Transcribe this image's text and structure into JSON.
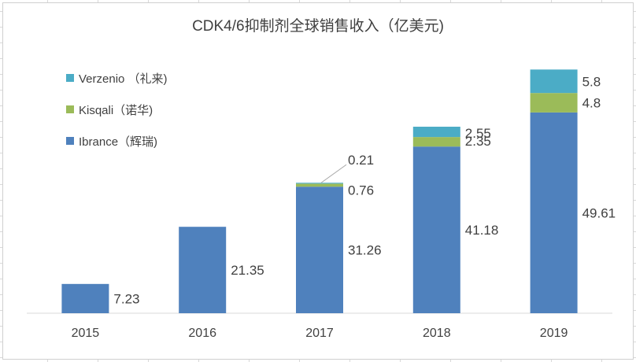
{
  "chart_data": {
    "type": "bar",
    "stacked": true,
    "title": "CDK4/6抑制剂全球销售收入（亿美元)",
    "categories": [
      "2015",
      "2016",
      "2017",
      "2018",
      "2019"
    ],
    "series": [
      {
        "name": "Ibrance（辉瑞)",
        "values": [
          7.23,
          21.35,
          31.26,
          41.18,
          49.61
        ],
        "color": "#4f81bd"
      },
      {
        "name": "Kisqali（诺华)",
        "values": [
          null,
          null,
          0.76,
          2.35,
          4.8
        ],
        "color": "#9bbb59"
      },
      {
        "name": "Verzenio （礼来)",
        "values": [
          null,
          null,
          0.21,
          2.55,
          5.8
        ],
        "color": "#4bacc6"
      }
    ],
    "data_labels": {
      "Ibrance（辉瑞)": [
        "7.23",
        "21.35",
        "31.26",
        "41.18",
        "49.61"
      ],
      "Kisqali（诺华)": [
        "",
        "",
        "0.76",
        "2.35",
        "4.8"
      ],
      "Verzenio （礼来)": [
        "",
        "",
        "0.21",
        "2.55",
        "5.8"
      ]
    },
    "legend_order": [
      "Verzenio （礼来)",
      "Kisqali（诺华)",
      "Ibrance（辉瑞)"
    ],
    "legend_position": "top-left",
    "ylim": [
      0,
      70
    ],
    "grid": false,
    "xlabel": "",
    "ylabel": ""
  }
}
